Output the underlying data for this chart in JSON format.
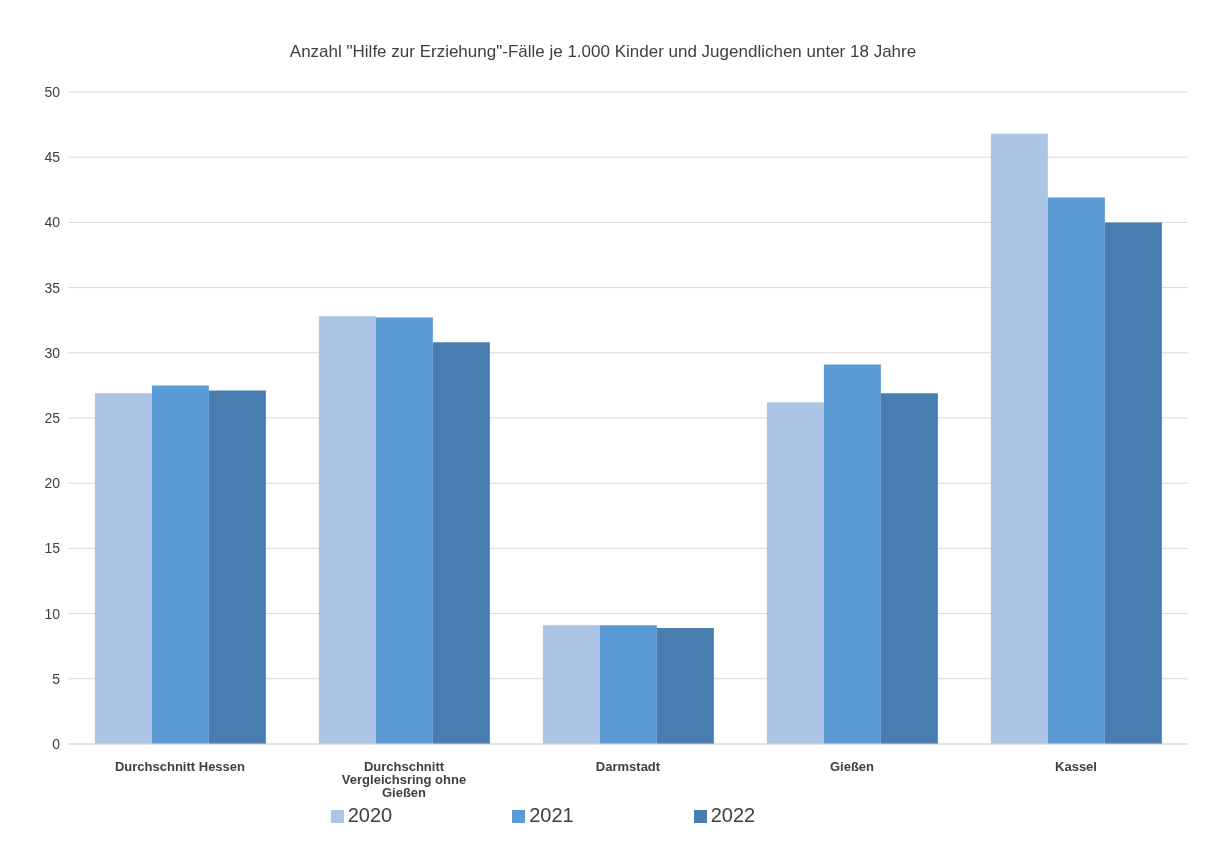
{
  "chart_data": {
    "type": "bar",
    "title": "Anzahl \"Hilfe zur Erziehung\"-Fälle je 1.000 Kinder und Jugendlichen unter 18 Jahre",
    "categories": [
      "Durchschnitt Hessen",
      "Durchschnitt Vergleichsring ohne Gießen",
      "Darmstadt",
      "Gießen",
      "Kassel"
    ],
    "series": [
      {
        "name": "2020",
        "color": "#adc5e5",
        "values": [
          26.9,
          32.8,
          9.1,
          26.2,
          46.8
        ]
      },
      {
        "name": "2021",
        "color": "#5b9bd5",
        "values": [
          27.5,
          32.7,
          9.1,
          29.1,
          41.9
        ]
      },
      {
        "name": "2022",
        "color": "#497daf",
        "values": [
          27.1,
          30.8,
          8.9,
          26.9,
          40.0
        ]
      }
    ],
    "ylim": [
      0,
      50
    ],
    "yticks": [
      0,
      5,
      10,
      15,
      20,
      25,
      30,
      35,
      40,
      45,
      50
    ],
    "grid": "y",
    "legend": "bottom"
  }
}
